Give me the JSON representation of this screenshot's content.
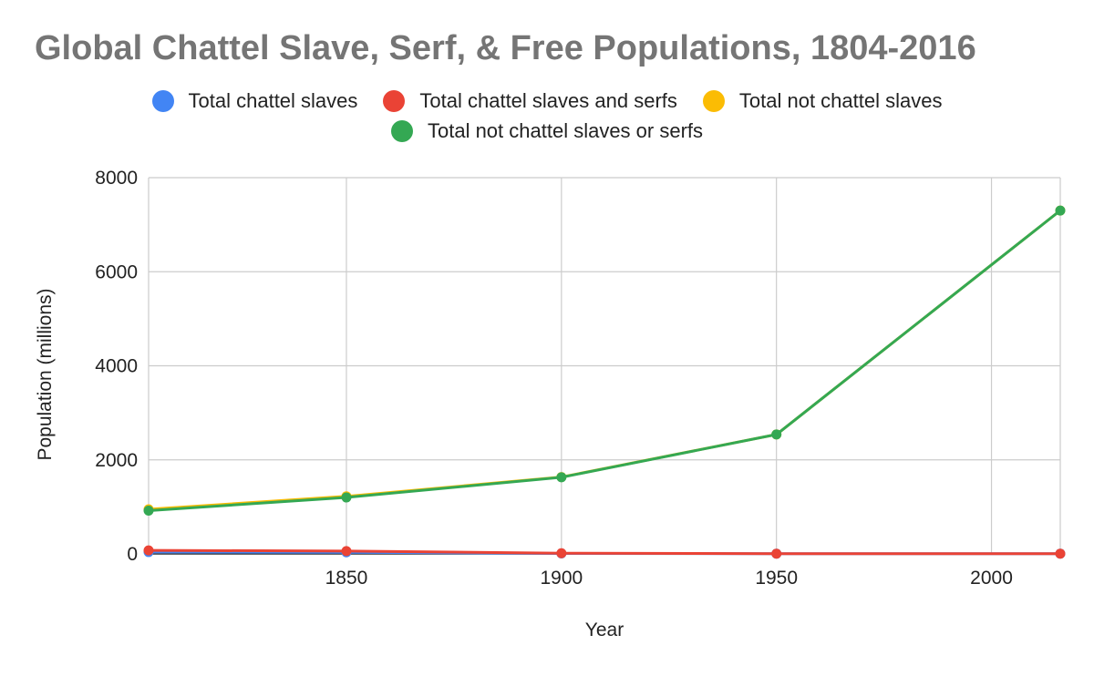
{
  "chart_data": {
    "type": "line",
    "title": "Global Chattel Slave, Serf, & Free Populations, 1804-2016",
    "xlabel": "Year",
    "ylabel": "Population (millions)",
    "x": [
      1804,
      1850,
      1900,
      1950,
      2016
    ],
    "xlim": [
      1804,
      2016
    ],
    "ylim": [
      0,
      8000
    ],
    "x_ticks": [
      1850,
      1900,
      1950,
      2000
    ],
    "y_ticks": [
      0,
      2000,
      4000,
      6000,
      8000
    ],
    "grid": true,
    "legend_position": "top",
    "series": [
      {
        "name": "Total chattel slaves",
        "color": "#4285F4",
        "values": [
          40,
          35,
          10,
          5,
          5
        ]
      },
      {
        "name": "Total chattel slaves and serfs",
        "color": "#EA4335",
        "values": [
          75,
          60,
          15,
          5,
          5
        ]
      },
      {
        "name": "Total not chattel slaves",
        "color": "#FBBC04",
        "values": [
          950,
          1225,
          1635,
          2540,
          7300
        ]
      },
      {
        "name": "Total not chattel slaves or serfs",
        "color": "#34A853",
        "values": [
          920,
          1200,
          1630,
          2540,
          7300
        ]
      }
    ]
  }
}
